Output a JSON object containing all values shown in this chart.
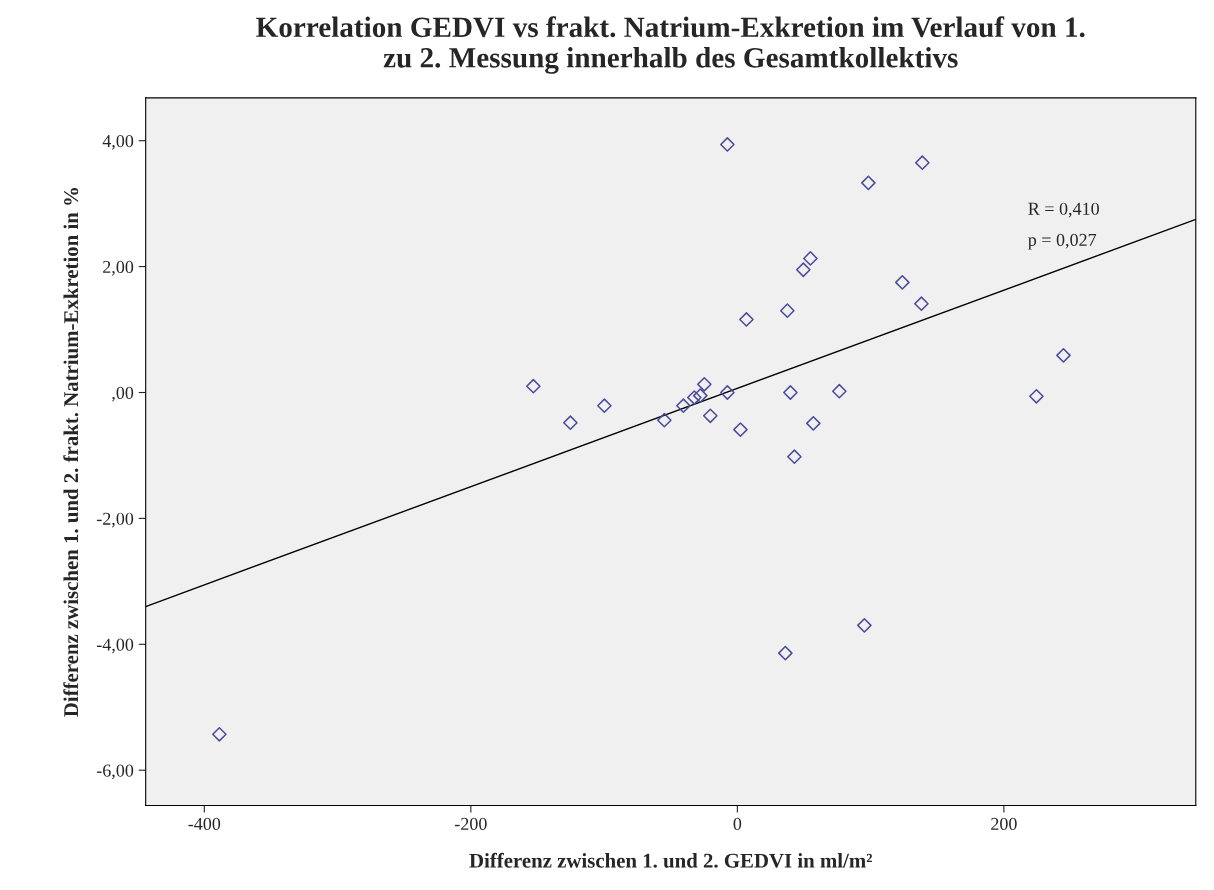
{
  "chart_data": {
    "type": "scatter",
    "title": "Korrelation GEDVI vs frakt. Natrium-Exkretion im Verlauf von 1.\nzu 2. Messung innerhalb des Gesamtkollektivs",
    "xlabel": "Differenz zwischen 1. und 2. GEDVI in ml/m²",
    "ylabel": "Differenz zwischen 1. und 2. frakt. Natrium-Exkretion in %",
    "xlim": [
      -444,
      344
    ],
    "ylim": [
      -6.56,
      4.68
    ],
    "xticks": [
      -400,
      -200,
      0,
      200
    ],
    "yticks": [
      {
        "value": 4,
        "label": "4,00"
      },
      {
        "value": 2,
        "label": "2,00"
      },
      {
        "value": 0,
        "label": ",00"
      },
      {
        "value": -2,
        "label": "-2,00"
      },
      {
        "value": -4,
        "label": "-4,00"
      },
      {
        "value": -6,
        "label": "-6,00"
      }
    ],
    "grid": false,
    "marker": "diamond",
    "legend": false,
    "annotations": [
      "R = 0,410",
      "p = 0,027"
    ],
    "series": [
      {
        "color": "#4b4b9b",
        "x": [
          -7.5,
          138.8,
          98.3,
          54.8,
          49.5,
          123.8,
          138.1,
          37.5,
          6.8,
          244.7,
          -153.1,
          -24.8,
          -7.5,
          39.8,
          76.5,
          224.4,
          -27.8,
          -32.3,
          -40.5,
          -99.8,
          -20.3,
          -54.8,
          -125.3,
          57,
          2.3,
          42.8,
          95.3,
          36,
          -388.7
        ],
        "values": [
          3.94,
          3.65,
          3.33,
          2.13,
          1.95,
          1.75,
          1.41,
          1.3,
          1.16,
          0.59,
          0.1,
          0.13,
          0.0,
          0.0,
          0.02,
          -0.06,
          -0.05,
          -0.08,
          -0.21,
          -0.21,
          -0.37,
          -0.44,
          -0.48,
          -0.49,
          -0.59,
          -1.02,
          -3.7,
          -4.14,
          -5.43
        ]
      },
      {
        "type": "line",
        "marker": "none",
        "color": "#000000",
        "x": [
          -444,
          344
        ],
        "values": [
          -3.4,
          2.75
        ]
      }
    ]
  }
}
